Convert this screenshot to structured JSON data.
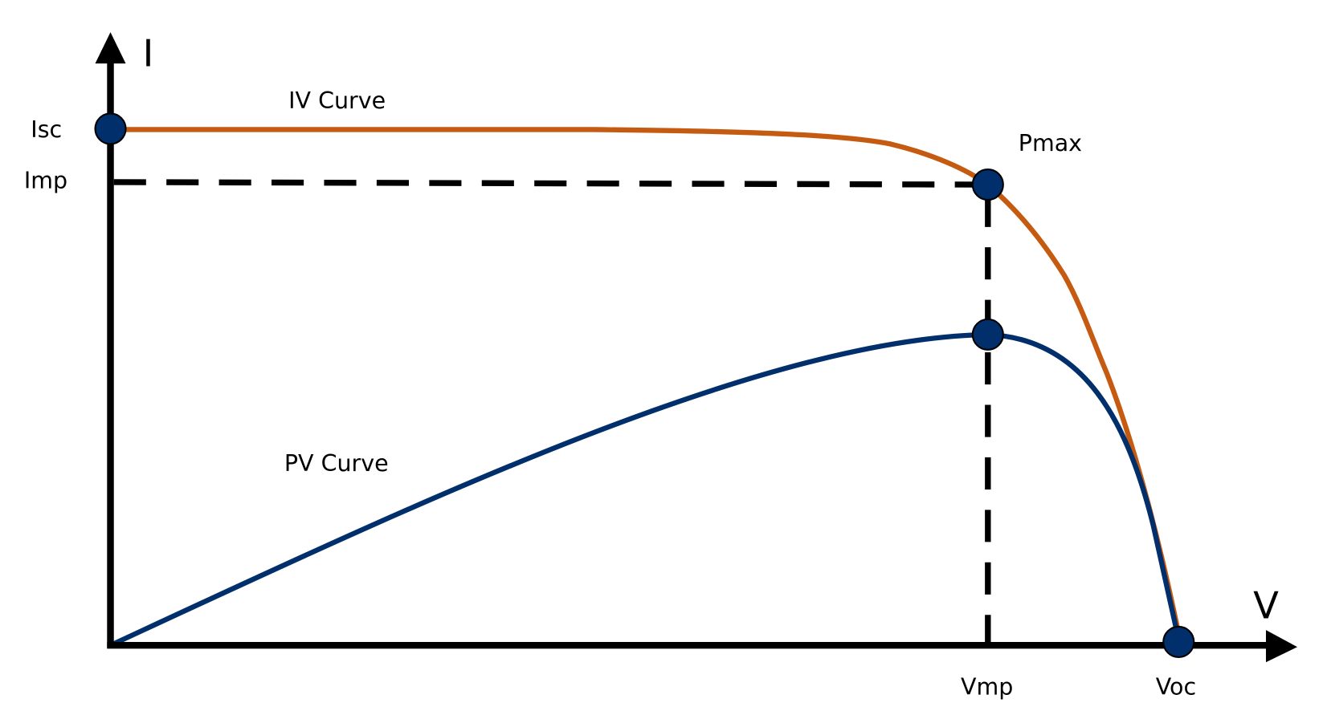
{
  "axes": {
    "y_label": "I",
    "x_label": "V"
  },
  "labels": {
    "isc": "Isc",
    "imp": "Imp",
    "vmp": "Vmp",
    "voc": "Voc",
    "pmax": "Pmax",
    "iv_curve": "IV Curve",
    "pv_curve": "PV Curve"
  },
  "colors": {
    "iv_curve": "#C55A11",
    "pv_curve": "#002F6C",
    "points": "#002F6C",
    "axes": "#000000"
  }
}
